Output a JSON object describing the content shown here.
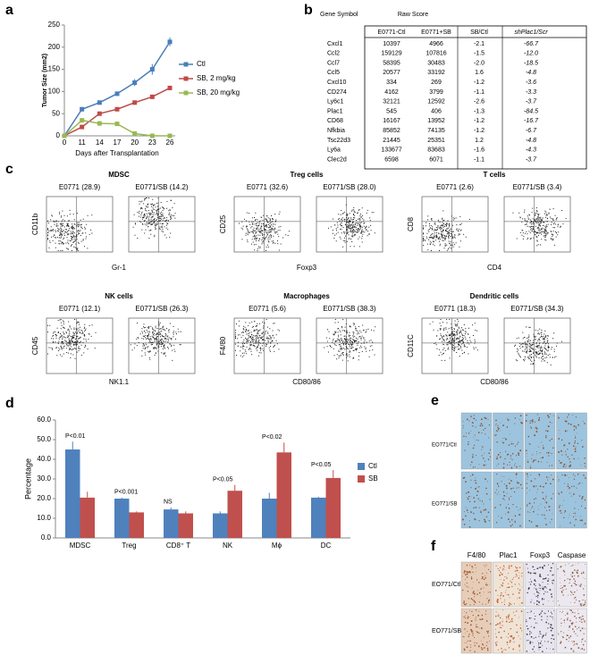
{
  "panel_labels": [
    "a",
    "b",
    "c",
    "d",
    "e",
    "f"
  ],
  "chart_data": [
    {
      "type": "line",
      "y_label": "Tumor Size (mm2)",
      "x_label": "Days after Transplantation",
      "categories": [
        "0",
        "11",
        "14",
        "17",
        "20",
        "23",
        "26"
      ],
      "ylim": [
        0,
        250
      ],
      "yticks": [
        0,
        50,
        100,
        150,
        200,
        250
      ],
      "legend": "right",
      "series": [
        {
          "name": "Ctl",
          "color": "#4a7ebb",
          "values": [
            0,
            60,
            75,
            95,
            120,
            150,
            212
          ],
          "errors": [
            0,
            3,
            4,
            4,
            8,
            12,
            10
          ]
        },
        {
          "name": "SB, 2 mg/kg",
          "color": "#be4b48",
          "values": [
            0,
            20,
            50,
            60,
            75,
            88,
            108
          ],
          "errors": [
            0,
            3,
            3,
            3,
            3,
            4,
            4
          ]
        },
        {
          "name": "SB, 20 mg/kg",
          "color": "#98b954",
          "values": [
            0,
            35,
            28,
            27,
            5,
            0,
            0
          ],
          "errors": [
            0,
            3,
            2,
            2,
            2,
            0,
            0
          ]
        }
      ]
    },
    {
      "type": "bar",
      "y_label": "Percentage",
      "categories": [
        "MDSC",
        "Treg",
        "CD8⁺ T",
        "NK",
        "Mϕ",
        "DC"
      ],
      "annotations": [
        "P<0.01",
        "P<0.001",
        "NS",
        "P<0.05",
        "P<0.02",
        "P<0.05"
      ],
      "ylim": [
        0,
        60
      ],
      "yticks": [
        {
          "value": 0,
          "label": "0.0"
        },
        {
          "value": 10,
          "label": "10.0"
        },
        {
          "value": 20,
          "label": "20.0"
        },
        {
          "value": 30,
          "label": "30.0"
        },
        {
          "value": 40,
          "label": "40.0"
        },
        {
          "value": 50,
          "label": "50.0"
        },
        {
          "value": 60,
          "label": "60.0"
        }
      ],
      "legend": "right",
      "series": [
        {
          "name": "Ctl",
          "color": "#4f81bd",
          "values": [
            45,
            20,
            14.5,
            12.5,
            20,
            20.5
          ],
          "errors": [
            4,
            0.5,
            1,
            1,
            3,
            0.5
          ]
        },
        {
          "name": "SB",
          "color": "#c0504d",
          "values": [
            20.5,
            13,
            12.5,
            24,
            43.5,
            30.5
          ],
          "errors": [
            3,
            0.5,
            1,
            3,
            5,
            4
          ]
        }
      ]
    }
  ],
  "table": {
    "header": [
      "Gene Symbol",
      "Raw Score",
      "SB/Ctl",
      "shPlac1/Scr"
    ],
    "subheader": [
      "E0771-Ctl",
      "E0771+SB"
    ],
    "rows": [
      [
        "Cxcl1",
        "10397",
        "4966",
        "-2.1",
        "-66.7"
      ],
      [
        "Ccl2",
        "159129",
        "107816",
        "-1.5",
        "-12.0"
      ],
      [
        "Ccl7",
        "58395",
        "30483",
        "-2.0",
        "-18.5"
      ],
      [
        "Ccl5",
        "20577",
        "33192",
        "1.6",
        "-4.8"
      ],
      [
        "Cxcl10",
        "334",
        "269",
        "-1.2",
        "-3.6"
      ],
      [
        "CD274",
        "4162",
        "3799",
        "-1.1",
        "-3.3"
      ],
      [
        "Ly6c1",
        "32121",
        "12592",
        "-2.6",
        "-3.7"
      ],
      [
        "Plac1",
        "545",
        "406",
        "-1.3",
        "-84.5"
      ],
      [
        "CD68",
        "16167",
        "13952",
        "-1.2",
        "-16.7"
      ],
      [
        "Nfkbia",
        "85852",
        "74135",
        "-1.2",
        "-6.7"
      ],
      [
        "Tsc22d3",
        "21445",
        "25351",
        "1.2",
        "-4.8"
      ],
      [
        "Ly6a",
        "133677",
        "83683",
        "-1.6",
        "-4.3"
      ],
      [
        "Clec2d",
        "6598",
        "6071",
        "-1.1",
        "-3.7"
      ]
    ]
  },
  "flow": {
    "groups": [
      {
        "title": "MDSC",
        "samples": [
          "E0771 (28.9)",
          "E0771/SB (14.2)"
        ],
        "y_label": "CD11b",
        "x_label": "Gr-1"
      },
      {
        "title": "Treg cells",
        "samples": [
          "E0771 (32.6)",
          "E0771/SB (28.0)"
        ],
        "y_label": "CD25",
        "x_label": "Foxp3"
      },
      {
        "title": "T cells",
        "samples": [
          "E0771 (2.6)",
          "E0771/SB (3.4)"
        ],
        "y_label": "CD8",
        "x_label": "CD4"
      },
      {
        "title": "NK cells",
        "samples": [
          "E0771 (12.1)",
          "E0771/SB (26.3)"
        ],
        "y_label": "CD45",
        "x_label": "NK1.1"
      },
      {
        "title": "Macrophages",
        "samples": [
          "E0771 (5.6)",
          "E0771/SB (38.3)"
        ],
        "y_label": "F4/80",
        "x_label": "CD80/86"
      },
      {
        "title": "Dendritic cells",
        "samples": [
          "E0771 (18.3)",
          "E0771/SB (34.3)"
        ],
        "y_label": "CD11C",
        "x_label": "CD80/86"
      }
    ]
  },
  "ihc_e": {
    "rows": [
      "EO771/Ctl",
      "EO771/SB"
    ]
  },
  "ihc_f": {
    "columns": [
      "F4/80",
      "Plac1",
      "Foxp3",
      "Caspase"
    ],
    "rows": [
      "EO771/Ctl",
      "EO771/SB"
    ]
  }
}
